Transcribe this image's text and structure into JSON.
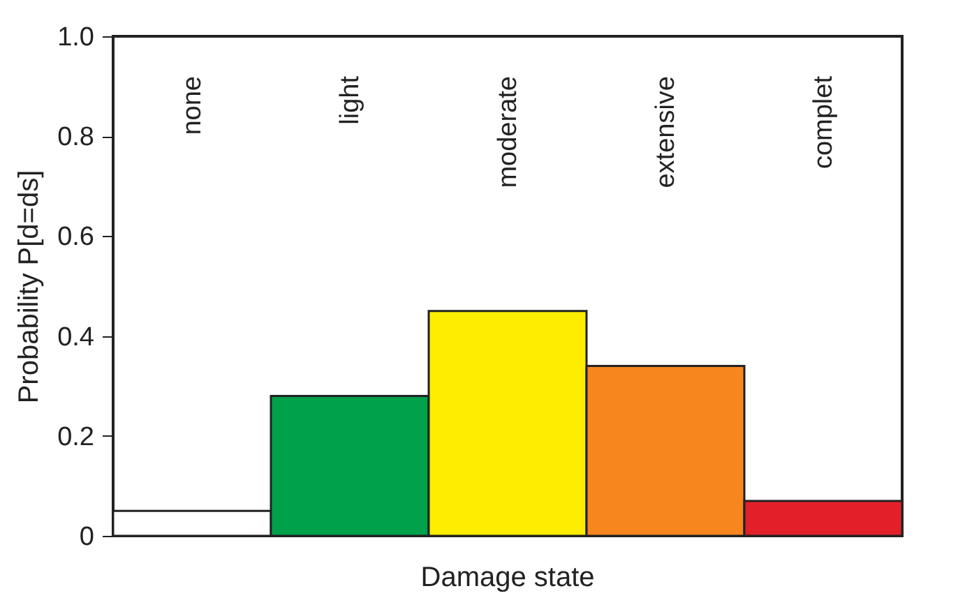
{
  "chart_data": {
    "type": "bar",
    "xlabel": "Damage state",
    "ylabel": "Probability P[d=ds]",
    "categories": [
      "none",
      "light",
      "moderate",
      "extensive",
      "complet"
    ],
    "values": [
      0.05,
      0.28,
      0.45,
      0.34,
      0.07
    ],
    "colors": [
      "#ffffff",
      "#00a14b",
      "#ffed00",
      "#f7861e",
      "#e3202a"
    ],
    "ylim": [
      0,
      1
    ],
    "yticks": [
      0,
      {
        "value": 0.2,
        "label": "0.2"
      },
      {
        "value": 0.4,
        "label": "0.4"
      },
      {
        "value": 0.6,
        "label": "0.6"
      },
      {
        "value": 0.8,
        "label": "0.8"
      },
      {
        "value": 1,
        "label": "1.0"
      }
    ],
    "grid": false
  }
}
